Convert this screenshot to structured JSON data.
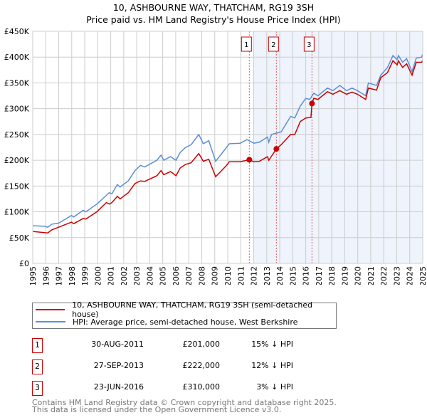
{
  "chart_data": {
    "type": "line",
    "title": "10, ASHBOURNE WAY, THATCHAM, RG19 3SH",
    "subtitle": "Price paid vs. HM Land Registry's House Price Index (HPI)",
    "xlim": [
      1995,
      2025
    ],
    "ylim": [
      0,
      450000
    ],
    "y_ticks": [
      {
        "v": 0,
        "label": "£0"
      },
      {
        "v": 50000,
        "label": "£50K"
      },
      {
        "v": 100000,
        "label": "£100K"
      },
      {
        "v": 150000,
        "label": "£150K"
      },
      {
        "v": 200000,
        "label": "£200K"
      },
      {
        "v": 250000,
        "label": "£250K"
      },
      {
        "v": 300000,
        "label": "£300K"
      },
      {
        "v": 350000,
        "label": "£350K"
      },
      {
        "v": 400000,
        "label": "£400K"
      },
      {
        "v": 450000,
        "label": "£450K"
      }
    ],
    "x_ticks": [
      "1995",
      "1996",
      "1997",
      "1998",
      "1999",
      "2000",
      "2001",
      "2002",
      "2003",
      "2004",
      "2005",
      "2006",
      "2007",
      "2008",
      "2009",
      "2010",
      "2011",
      "2012",
      "2013",
      "2014",
      "2015",
      "2016",
      "2017",
      "2018",
      "2019",
      "2020",
      "2021",
      "2022",
      "2023",
      "2024",
      "2025"
    ],
    "shaded_range": [
      2012,
      2025
    ],
    "grid": true,
    "series": [
      {
        "name": "10, ASHBOURNE WAY, THATCHAM, RG19 3SH (semi-detached house)",
        "color": "#cc0000",
        "points": [
          [
            1995,
            62
          ],
          [
            1996.15,
            59
          ],
          [
            1996.47,
            65
          ],
          [
            1997.98,
            80
          ],
          [
            1998.15,
            77
          ],
          [
            1998.88,
            87
          ],
          [
            1999.09,
            86
          ],
          [
            1999.93,
            100
          ],
          [
            2000.67,
            118
          ],
          [
            2000.88,
            115
          ],
          [
            2001.09,
            118
          ],
          [
            2001.51,
            130
          ],
          [
            2001.72,
            125
          ],
          [
            2002.35,
            137
          ],
          [
            2002.87,
            155
          ],
          [
            2003.29,
            160
          ],
          [
            2003.61,
            159
          ],
          [
            2004.55,
            170
          ],
          [
            2004.87,
            180
          ],
          [
            2005.08,
            172
          ],
          [
            2005.6,
            178
          ],
          [
            2006.02,
            170
          ],
          [
            2006.34,
            185
          ],
          [
            2006.76,
            192
          ],
          [
            2007.18,
            195
          ],
          [
            2007.77,
            213
          ],
          [
            2008.12,
            198
          ],
          [
            2008.54,
            202
          ],
          [
            2009.07,
            168
          ],
          [
            2009.91,
            190
          ],
          [
            2010.12,
            197
          ],
          [
            2010.96,
            197
          ],
          [
            2011.66,
            201
          ],
          [
            2012.01,
            197
          ],
          [
            2012.43,
            198
          ],
          [
            2013.06,
            207
          ],
          [
            2013.16,
            200
          ],
          [
            2013.74,
            222
          ],
          [
            2014.11,
            230
          ],
          [
            2014.84,
            250
          ],
          [
            2015.16,
            250
          ],
          [
            2015.58,
            275
          ],
          [
            2016,
            282
          ],
          [
            2016.4,
            283
          ],
          [
            2016.48,
            310
          ],
          [
            2016.62,
            320
          ],
          [
            2016.94,
            318
          ],
          [
            2017.67,
            333
          ],
          [
            2018.09,
            328
          ],
          [
            2018.62,
            335
          ],
          [
            2019.14,
            328
          ],
          [
            2019.56,
            332
          ],
          [
            2019.98,
            328
          ],
          [
            2020.61,
            318
          ],
          [
            2020.82,
            340
          ],
          [
            2021.45,
            336
          ],
          [
            2021.77,
            360
          ],
          [
            2022.29,
            370
          ],
          [
            2022.71,
            393
          ],
          [
            2023.03,
            385
          ],
          [
            2023.13,
            393
          ],
          [
            2023.45,
            380
          ],
          [
            2023.76,
            387
          ],
          [
            2024.18,
            365
          ],
          [
            2024.5,
            390
          ],
          [
            2024.92,
            390
          ],
          [
            2024.98,
            393
          ]
        ]
      },
      {
        "name": "HPI: Average price, semi-detached house, West Berkshire",
        "color": "#5b8fd4",
        "points": [
          [
            1995,
            73
          ],
          [
            1995.94,
            72
          ],
          [
            1996.15,
            70
          ],
          [
            1996.47,
            76
          ],
          [
            1996.99,
            78
          ],
          [
            1997.98,
            93
          ],
          [
            1998.15,
            90
          ],
          [
            1998.88,
            103
          ],
          [
            1999.09,
            100
          ],
          [
            1999.93,
            115
          ],
          [
            2000.67,
            132
          ],
          [
            2000.88,
            137
          ],
          [
            2001.09,
            135
          ],
          [
            2001.51,
            153
          ],
          [
            2001.72,
            148
          ],
          [
            2002.35,
            160
          ],
          [
            2002.87,
            180
          ],
          [
            2003.29,
            190
          ],
          [
            2003.61,
            187
          ],
          [
            2004.55,
            200
          ],
          [
            2004.87,
            210
          ],
          [
            2005.08,
            200
          ],
          [
            2005.6,
            207
          ],
          [
            2006.02,
            200
          ],
          [
            2006.34,
            215
          ],
          [
            2006.76,
            225
          ],
          [
            2007.18,
            230
          ],
          [
            2007.77,
            250
          ],
          [
            2008.12,
            232
          ],
          [
            2008.54,
            238
          ],
          [
            2009.07,
            198
          ],
          [
            2009.91,
            225
          ],
          [
            2010.12,
            232
          ],
          [
            2010.96,
            233
          ],
          [
            2011.48,
            240
          ],
          [
            2012.01,
            233
          ],
          [
            2012.43,
            235
          ],
          [
            2013.06,
            245
          ],
          [
            2013.16,
            235
          ],
          [
            2013.37,
            250
          ],
          [
            2014.11,
            255
          ],
          [
            2014.84,
            285
          ],
          [
            2015.16,
            282
          ],
          [
            2015.58,
            305
          ],
          [
            2016,
            320
          ],
          [
            2016.31,
            318
          ],
          [
            2016.62,
            330
          ],
          [
            2016.94,
            325
          ],
          [
            2017.67,
            340
          ],
          [
            2018.09,
            335
          ],
          [
            2018.62,
            345
          ],
          [
            2019.14,
            335
          ],
          [
            2019.56,
            340
          ],
          [
            2019.98,
            335
          ],
          [
            2020.61,
            325
          ],
          [
            2020.82,
            350
          ],
          [
            2021.45,
            345
          ],
          [
            2021.77,
            365
          ],
          [
            2022.29,
            380
          ],
          [
            2022.71,
            403
          ],
          [
            2023.03,
            395
          ],
          [
            2023.13,
            403
          ],
          [
            2023.45,
            390
          ],
          [
            2023.76,
            397
          ],
          [
            2024.18,
            372
          ],
          [
            2024.5,
            398
          ],
          [
            2024.92,
            400
          ],
          [
            2024.98,
            405
          ]
        ]
      }
    ],
    "value_unit": "£ thousands",
    "sales": [
      {
        "n": "1",
        "year": 2011.66,
        "value": 201,
        "date": "30-AUG-2011",
        "price": "£201,000",
        "hpi": "15% ↓ HPI"
      },
      {
        "n": "2",
        "year": 2013.74,
        "value": 222,
        "date": "27-SEP-2013",
        "price": "£222,000",
        "hpi": "12% ↓ HPI"
      },
      {
        "n": "3",
        "year": 2016.48,
        "value": 310,
        "date": "23-JUN-2016",
        "price": "£310,000",
        "hpi": "3% ↓ HPI"
      }
    ]
  },
  "legend": {
    "items": [
      "10, ASHBOURNE WAY, THATCHAM, RG19 3SH (semi-detached house)",
      "HPI: Average price, semi-detached house, West Berkshire"
    ]
  },
  "footer": {
    "line1": "Contains HM Land Registry data © Crown copyright and database right 2025.",
    "line2": "This data is licensed under the Open Government Licence v3.0."
  },
  "colors": {
    "red": "#cc0000",
    "blue": "#5b8fd4",
    "shade": "#eef3fc",
    "grid": "#cccccc"
  }
}
